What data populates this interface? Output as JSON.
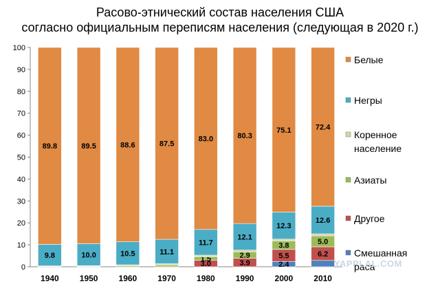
{
  "title_line1": "Расово-этнический состав населения США",
  "title_line2": "согласно официальным переписям населения (следующая в 2020 г.)",
  "watermark": "YAPPLAL.COM",
  "chart_data": {
    "type": "bar",
    "stacked": true,
    "title": "Расово-этнический состав населения США согласно официальным переписям населения (следующая в 2020 г.)",
    "xlabel": "",
    "ylabel": "",
    "ylim": [
      0,
      100
    ],
    "yticks": [
      0,
      10,
      20,
      30,
      40,
      50,
      60,
      70,
      80,
      90,
      100
    ],
    "grid": false,
    "legend_position": "right",
    "categories": [
      "1940",
      "1950",
      "1960",
      "1970",
      "1980",
      "1990",
      "2000",
      "2010"
    ],
    "series": [
      {
        "name": "Смешанная раса",
        "color": "#4f81bd",
        "values": [
          0,
          0,
          0,
          0,
          0,
          0,
          2.4,
          2.9
        ],
        "labels": [
          "",
          "",
          "",
          "",
          "",
          "",
          "2.4",
          ""
        ]
      },
      {
        "name": "Другое",
        "color": "#c0504d",
        "values": [
          0,
          0,
          0,
          0,
          3.0,
          3.9,
          5.5,
          6.2
        ],
        "labels": [
          "",
          "",
          "",
          "",
          "3.0",
          "3.9",
          "5.5",
          "6.2"
        ]
      },
      {
        "name": "Азиаты",
        "color": "#9bbb59",
        "values": [
          0.2,
          0.2,
          0.5,
          0.8,
          1.5,
          2.9,
          3.8,
          5.0
        ],
        "labels": [
          "",
          "",
          "",
          "",
          "1.5",
          "2.9",
          "3.8",
          "5.0"
        ]
      },
      {
        "name": "Коренное население",
        "color": "#d8d4a6",
        "values": [
          0.2,
          0.3,
          0.4,
          0.6,
          0.8,
          0.8,
          0.9,
          0.9
        ],
        "labels": [
          "",
          "",
          "",
          "",
          "",
          "",
          "",
          ""
        ]
      },
      {
        "name": "Негры",
        "color": "#4bacc6",
        "values": [
          9.8,
          10.0,
          10.5,
          11.1,
          11.7,
          12.1,
          12.3,
          12.6
        ],
        "labels": [
          "9.8",
          "10.0",
          "10.5",
          "11.1",
          "11.7",
          "12.1",
          "12.3",
          "12.6"
        ]
      },
      {
        "name": "Белые",
        "color": "#e08a44",
        "values": [
          89.8,
          89.5,
          88.6,
          87.5,
          83.0,
          80.3,
          75.1,
          72.4
        ],
        "labels": [
          "89.8",
          "89.5",
          "88.6",
          "87.5",
          "83.0",
          "80.3",
          "75.1",
          "72.4"
        ]
      }
    ],
    "legend_order": [
      "Белые",
      "Негры",
      "Коренное население",
      "Азиаты",
      "Другое",
      "Смешанная раса"
    ],
    "legend_lines": {
      "Белые": [
        "Белые"
      ],
      "Негры": [
        "Негры"
      ],
      "Коренное население": [
        "Коренное",
        "население"
      ],
      "Азиаты": [
        "Азиаты"
      ],
      "Другое": [
        "Другое"
      ],
      "Смешанная раса": [
        "Смешанная",
        "раса"
      ]
    }
  }
}
